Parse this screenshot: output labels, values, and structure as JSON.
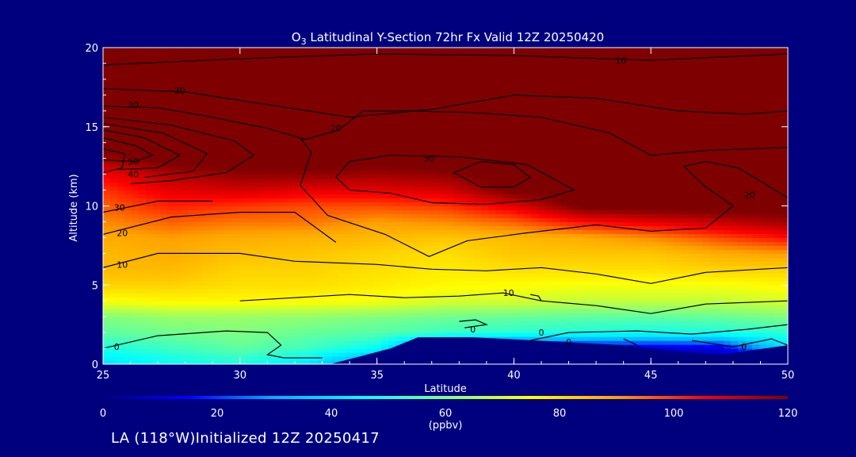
{
  "colors": {
    "background": "#00007f",
    "text": "#ffffff",
    "contour": "#000000"
  },
  "chart_data": {
    "type": "heatmap",
    "title_species": "O",
    "title_subscript": "3",
    "title_rest": " Latitudinal Y-Section 72hr  Fx Valid 12Z 20250420",
    "xlabel": "Latitude",
    "ylabel": "Altitude (km)",
    "xlim": [
      25,
      50
    ],
    "ylim": [
      0,
      20
    ],
    "x_ticks": [
      "25",
      "30",
      "35",
      "40",
      "45",
      "50"
    ],
    "y_ticks": [
      "0",
      "5",
      "10",
      "15",
      "20"
    ],
    "lat_grid": [
      25,
      27.5,
      30,
      32.5,
      35,
      37.5,
      40,
      42.5,
      45,
      47.5,
      50
    ],
    "alt_grid": [
      0,
      1,
      2,
      3,
      4,
      5,
      6,
      7,
      8,
      9,
      10,
      11,
      12,
      13,
      14,
      15,
      16,
      17,
      18,
      19,
      20
    ],
    "ozone_ppbv": [
      [
        40,
        45,
        48,
        40,
        20,
        5,
        5,
        5,
        5,
        5,
        8
      ],
      [
        48,
        52,
        56,
        52,
        45,
        8,
        5,
        8,
        8,
        10,
        40
      ],
      [
        56,
        58,
        60,
        57,
        55,
        52,
        50,
        48,
        47,
        48,
        50
      ],
      [
        60,
        63,
        63,
        62,
        60,
        58,
        57,
        56,
        56,
        57,
        60
      ],
      [
        74,
        76,
        76,
        75,
        74,
        70,
        70,
        68,
        68,
        68,
        70
      ],
      [
        82,
        82,
        80,
        80,
        78,
        76,
        75,
        74,
        74,
        74,
        76
      ],
      [
        86,
        86,
        82,
        82,
        80,
        78,
        80,
        80,
        80,
        82,
        82
      ],
      [
        86,
        88,
        85,
        84,
        82,
        80,
        84,
        84,
        84,
        88,
        90
      ],
      [
        88,
        90,
        88,
        87,
        86,
        84,
        86,
        88,
        92,
        98,
        104
      ],
      [
        92,
        96,
        94,
        94,
        90,
        92,
        96,
        104,
        108,
        112,
        116
      ],
      [
        96,
        102,
        100,
        98,
        98,
        100,
        108,
        122,
        124,
        124,
        124
      ],
      [
        100,
        108,
        110,
        108,
        108,
        110,
        122,
        124,
        124,
        124,
        124
      ],
      [
        106,
        114,
        118,
        118,
        116,
        118,
        124,
        124,
        124,
        124,
        124
      ],
      [
        116,
        124,
        124,
        124,
        124,
        124,
        124,
        124,
        124,
        124,
        124
      ],
      [
        124,
        124,
        124,
        124,
        124,
        124,
        124,
        124,
        124,
        124,
        124
      ],
      [
        124,
        124,
        124,
        124,
        124,
        124,
        124,
        124,
        124,
        124,
        124
      ],
      [
        124,
        124,
        124,
        124,
        124,
        124,
        124,
        124,
        124,
        124,
        124
      ],
      [
        124,
        124,
        124,
        124,
        124,
        124,
        124,
        124,
        124,
        124,
        124
      ],
      [
        124,
        124,
        124,
        124,
        124,
        124,
        124,
        124,
        124,
        124,
        124
      ],
      [
        124,
        124,
        124,
        124,
        124,
        124,
        124,
        124,
        124,
        124,
        124
      ],
      [
        124,
        124,
        124,
        124,
        124,
        124,
        124,
        124,
        124,
        124,
        124
      ]
    ],
    "terrain": [
      {
        "lat": 33.3,
        "alt": 0.0
      },
      {
        "lat": 35.5,
        "alt": 1.0
      },
      {
        "lat": 36.5,
        "alt": 1.7
      },
      {
        "lat": 38.5,
        "alt": 1.7
      },
      {
        "lat": 40.8,
        "alt": 1.5
      },
      {
        "lat": 44.0,
        "alt": 1.2
      },
      {
        "lat": 46.0,
        "alt": 0.8
      },
      {
        "lat": 47.5,
        "alt": 0.6
      },
      {
        "lat": 50.0,
        "alt": 1.2
      }
    ],
    "contours": [
      {
        "label": "10",
        "label_at": [
          43.7,
          19.2
        ],
        "points": [
          [
            25,
            18.9
          ],
          [
            30,
            19.3
          ],
          [
            35,
            19.6
          ],
          [
            40,
            19.5
          ],
          [
            45,
            19.2
          ],
          [
            50,
            19.6
          ]
        ]
      },
      {
        "label": "20",
        "label_at": [
          27.6,
          17.3
        ],
        "points": [
          [
            25,
            17.4
          ],
          [
            28,
            17.2
          ],
          [
            31,
            16.4
          ],
          [
            34,
            15.6
          ],
          [
            37,
            16.1
          ],
          [
            40,
            17.0
          ],
          [
            43,
            16.8
          ],
          [
            46,
            16.0
          ],
          [
            48.5,
            15.8
          ],
          [
            50,
            16.0
          ]
        ]
      },
      {
        "label": "30",
        "label_at": [
          25.9,
          16.4
        ],
        "points": [
          [
            25,
            16.3
          ],
          [
            27,
            16.2
          ],
          [
            29,
            15.6
          ],
          [
            31,
            14.9
          ],
          [
            32.4,
            14.2
          ],
          [
            33.6,
            14.8
          ],
          [
            34.5,
            16.0
          ],
          [
            36,
            16.0
          ],
          [
            38.5,
            15.9
          ],
          [
            41,
            15.6
          ],
          [
            43.5,
            14.6
          ],
          [
            45,
            13.2
          ],
          [
            47,
            13.5
          ],
          [
            50,
            13.7
          ]
        ]
      },
      {
        "label": "",
        "label_at": null,
        "points": [
          [
            25,
            15.6
          ],
          [
            27.5,
            15.1
          ],
          [
            29.8,
            14.1
          ],
          [
            30.5,
            13.2
          ],
          [
            29.5,
            12.1
          ],
          [
            27.5,
            11.6
          ],
          [
            26,
            11.4
          ]
        ]
      },
      {
        "label": "",
        "label_at": null,
        "points": [
          [
            25,
            15.2
          ],
          [
            27.2,
            14.6
          ],
          [
            28.8,
            13.3
          ],
          [
            28.3,
            12.2
          ],
          [
            26.5,
            11.8
          ]
        ]
      },
      {
        "label": "",
        "label_at": null,
        "points": [
          [
            25,
            14.8
          ],
          [
            26.5,
            14.3
          ],
          [
            27.8,
            13.2
          ],
          [
            27,
            12.4
          ],
          [
            25.6,
            12.3
          ]
        ]
      },
      {
        "label": "50",
        "label_at": [
          25.9,
          12.8
        ],
        "points": [
          [
            25,
            14.3
          ],
          [
            26.2,
            13.8
          ],
          [
            26.8,
            13.2
          ],
          [
            26.2,
            12.8
          ],
          [
            25,
            12.9
          ]
        ]
      },
      {
        "label": "40",
        "label_at": [
          25.9,
          12.0
        ],
        "points": [
          [
            25,
            13.6
          ],
          [
            25.8,
            13.3
          ],
          [
            25.7,
            12.4
          ],
          [
            25,
            12.1
          ]
        ]
      },
      {
        "label": "30",
        "label_at": [
          36.7,
          13.0
        ],
        "points": [
          [
            33.5,
            11.8
          ],
          [
            34.0,
            12.8
          ],
          [
            35.5,
            13.2
          ],
          [
            38.0,
            13.1
          ],
          [
            40.5,
            12.6
          ],
          [
            42.2,
            11.0
          ],
          [
            41.0,
            10.4
          ],
          [
            39.0,
            10.1
          ],
          [
            37.0,
            10.2
          ],
          [
            35.5,
            10.8
          ],
          [
            34.0,
            11.0
          ],
          [
            33.5,
            11.8
          ]
        ]
      },
      {
        "label": "",
        "label_at": null,
        "points": [
          [
            37.8,
            12.1
          ],
          [
            38.8,
            12.8
          ],
          [
            40.0,
            12.6
          ],
          [
            40.6,
            11.8
          ],
          [
            40.0,
            11.2
          ],
          [
            38.8,
            11.2
          ],
          [
            37.8,
            12.1
          ]
        ]
      },
      {
        "label": "20",
        "label_at": [
          33.3,
          14.9
        ],
        "points": [
          [
            32.2,
            14.3
          ],
          [
            32.6,
            13.4
          ],
          [
            32.2,
            11.3
          ],
          [
            33.2,
            9.4
          ],
          [
            35.3,
            8.2
          ],
          [
            36.9,
            6.8
          ],
          [
            38.3,
            7.8
          ],
          [
            40.5,
            8.3
          ],
          [
            43.0,
            8.8
          ],
          [
            45.0,
            8.4
          ],
          [
            47.0,
            8.6
          ],
          [
            48.0,
            10.0
          ],
          [
            47.0,
            11.2
          ],
          [
            46.2,
            12.5
          ],
          [
            47.0,
            12.8
          ],
          [
            48.2,
            12.4
          ],
          [
            50,
            10.5
          ]
        ]
      },
      {
        "label": "20",
        "label_at": [
          48.4,
          10.7
        ],
        "points": []
      },
      {
        "label": "20",
        "label_at": [
          25.5,
          8.3
        ],
        "points": [
          [
            25,
            8.2
          ],
          [
            27.5,
            9.3
          ],
          [
            30.0,
            9.6
          ],
          [
            32.0,
            9.6
          ],
          [
            33.5,
            7.7
          ]
        ]
      },
      {
        "label": "30",
        "label_at": [
          25.4,
          9.9
        ],
        "points": [
          [
            25,
            9.6
          ],
          [
            27,
            10.3
          ],
          [
            29,
            10.3
          ]
        ]
      },
      {
        "label": "10",
        "label_at": [
          25.5,
          6.3
        ],
        "points": [
          [
            25,
            6.1
          ],
          [
            27,
            7.0
          ],
          [
            30,
            7.0
          ],
          [
            32,
            6.5
          ],
          [
            35,
            6.3
          ],
          [
            37,
            6.0
          ],
          [
            39,
            5.9
          ],
          [
            41,
            6.1
          ],
          [
            43,
            5.7
          ],
          [
            45,
            5.1
          ],
          [
            47,
            5.8
          ],
          [
            50,
            6.1
          ]
        ]
      },
      {
        "label": "10",
        "label_at": [
          39.6,
          4.5
        ],
        "points": [
          [
            30,
            4.0
          ],
          [
            32,
            4.2
          ],
          [
            34,
            4.4
          ],
          [
            36,
            4.2
          ],
          [
            38,
            4.3
          ],
          [
            39.6,
            4.5
          ],
          [
            41,
            4.0
          ],
          [
            43,
            3.7
          ],
          [
            45,
            3.2
          ],
          [
            47,
            3.8
          ],
          [
            50,
            4.0
          ]
        ]
      },
      {
        "label": "0",
        "label_at": [
          25.4,
          1.1
        ],
        "points": [
          [
            25,
            1.0
          ],
          [
            27,
            1.8
          ],
          [
            29.5,
            2.1
          ],
          [
            31,
            2.0
          ],
          [
            31.5,
            1.2
          ],
          [
            31,
            0.6
          ],
          [
            31.6,
            0.4
          ],
          [
            33,
            0.4
          ]
        ]
      },
      {
        "label": "0",
        "label_at": [
          38.4,
          2.2
        ],
        "points": [
          [
            38.0,
            2.7
          ],
          [
            38.6,
            2.8
          ],
          [
            39.0,
            2.5
          ],
          [
            38.2,
            2.3
          ]
        ]
      },
      {
        "label": "0",
        "label_at": [
          40.9,
          2.0
        ],
        "points": [
          [
            40.6,
            1.5
          ],
          [
            42,
            2.0
          ],
          [
            44.5,
            2.1
          ],
          [
            46.5,
            1.9
          ],
          [
            48.5,
            2.2
          ],
          [
            50,
            2.5
          ]
        ]
      },
      {
        "label": "0",
        "label_at": [
          41.9,
          1.4
        ],
        "points": [
          [
            44,
            1.6
          ],
          [
            44.5,
            1.2
          ]
        ]
      },
      {
        "label": "0",
        "label_at": [
          48.3,
          1.1
        ],
        "points": [
          [
            46.5,
            1.5
          ],
          [
            48.0,
            1.1
          ],
          [
            49.4,
            1.6
          ],
          [
            50,
            1.2
          ]
        ]
      },
      {
        "label": "",
        "label_at": null,
        "points": [
          [
            40.6,
            4.4
          ],
          [
            40.9,
            4.3
          ],
          [
            41.0,
            4.0
          ]
        ]
      }
    ],
    "colorbar": {
      "ticks": [
        "0",
        "20",
        "40",
        "60",
        "80",
        "100",
        "120"
      ],
      "range": [
        0,
        120
      ],
      "unit": "(ppbv)",
      "stops": [
        "#00007f",
        "#0000ff",
        "#00b0ff",
        "#00ffff",
        "#80ff80",
        "#ffff00",
        "#ffa000",
        "#ff0000",
        "#7f0000"
      ]
    }
  },
  "footer": "LA (118°W)Initialized 12Z 20250417"
}
